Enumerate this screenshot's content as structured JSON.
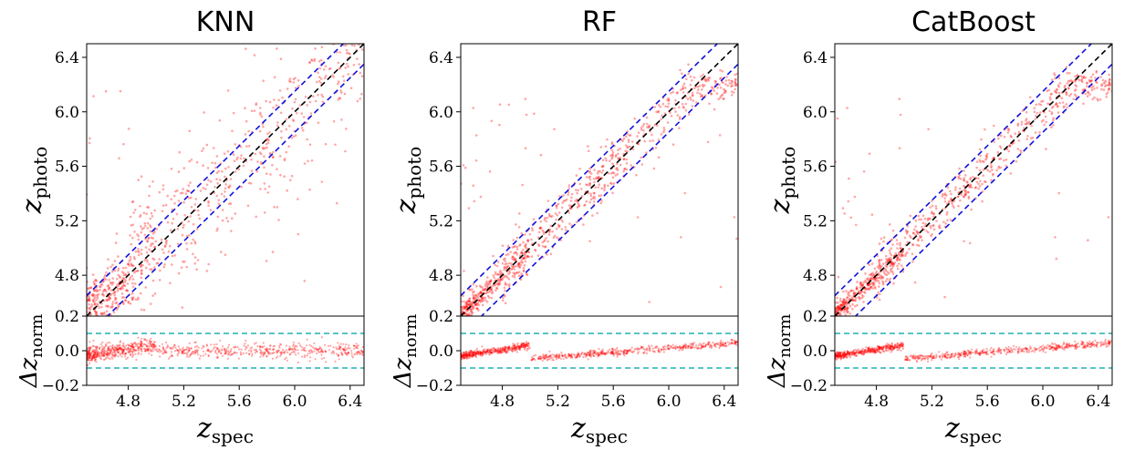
{
  "chart_data": [
    {
      "type": "scatter",
      "title": "KNN",
      "main": {
        "xlabel": "z",
        "xlabel_sub": "spec",
        "ylabel": "z",
        "ylabel_sub": "photo",
        "xlim": [
          4.5,
          6.5
        ],
        "ylim": [
          4.5,
          6.5
        ],
        "xticks": [
          4.8,
          5.2,
          5.6,
          6.0,
          6.4
        ],
        "yticks": [
          4.8,
          5.2,
          5.6,
          6.0,
          6.4
        ],
        "reference_lines": [
          {
            "name": "one-to-one",
            "color": "#000000",
            "offset": 0.0
          },
          {
            "name": "upper-bound",
            "color": "#1010dd",
            "offset": 0.15
          },
          {
            "name": "lower-bound",
            "color": "#1010dd",
            "offset": -0.15
          }
        ],
        "series": [
          {
            "name": "galaxies",
            "color": "#ff0000",
            "scatter_std": 0.26
          }
        ]
      },
      "residual": {
        "ylabel": "Δz",
        "ylabel_sub": "norm",
        "ylim": [
          -0.2,
          0.2
        ],
        "yticks": [
          -0.2,
          0.0,
          0.2
        ],
        "threshold_lines": [
          0.1,
          -0.1
        ],
        "threshold_color": "#20b0b0"
      }
    },
    {
      "type": "scatter",
      "title": "RF",
      "main": {
        "xlabel": "z",
        "xlabel_sub": "spec",
        "ylabel": "z",
        "ylabel_sub": "photo",
        "xlim": [
          4.5,
          6.5
        ],
        "ylim": [
          4.5,
          6.5
        ],
        "xticks": [
          4.8,
          5.2,
          5.6,
          6.0,
          6.4
        ],
        "yticks": [
          4.8,
          5.2,
          5.6,
          6.0,
          6.4
        ],
        "reference_lines": [
          {
            "name": "one-to-one",
            "color": "#000000",
            "offset": 0.0
          },
          {
            "name": "upper-bound",
            "color": "#1010dd",
            "offset": 0.15
          },
          {
            "name": "lower-bound",
            "color": "#1010dd",
            "offset": -0.15
          }
        ],
        "series": [
          {
            "name": "galaxies",
            "color": "#ff0000",
            "scatter_std": 0.09
          }
        ]
      },
      "residual": {
        "ylabel": "Δz",
        "ylabel_sub": "norm",
        "ylim": [
          -0.2,
          0.2
        ],
        "yticks": [
          -0.2,
          0.0,
          0.2
        ],
        "threshold_lines": [
          0.1,
          -0.1
        ],
        "threshold_color": "#20b0b0"
      }
    },
    {
      "type": "scatter",
      "title": "CatBoost",
      "main": {
        "xlabel": "z",
        "xlabel_sub": "spec",
        "ylabel": "z",
        "ylabel_sub": "photo",
        "xlim": [
          4.5,
          6.5
        ],
        "ylim": [
          4.5,
          6.5
        ],
        "xticks": [
          4.8,
          5.2,
          5.6,
          6.0,
          6.4
        ],
        "yticks": [
          4.8,
          5.2,
          5.6,
          6.0,
          6.4
        ],
        "reference_lines": [
          {
            "name": "one-to-one",
            "color": "#000000",
            "offset": 0.0
          },
          {
            "name": "upper-bound",
            "color": "#1010dd",
            "offset": 0.15
          },
          {
            "name": "lower-bound",
            "color": "#1010dd",
            "offset": -0.15
          }
        ],
        "series": [
          {
            "name": "galaxies",
            "color": "#ff0000",
            "scatter_std": 0.08
          }
        ]
      },
      "residual": {
        "ylabel": "Δz",
        "ylabel_sub": "norm",
        "ylim": [
          -0.2,
          0.2
        ],
        "yticks": [
          -0.2,
          0.0,
          0.2
        ],
        "threshold_lines": [
          0.1,
          -0.1
        ],
        "threshold_color": "#20b0b0"
      }
    }
  ]
}
